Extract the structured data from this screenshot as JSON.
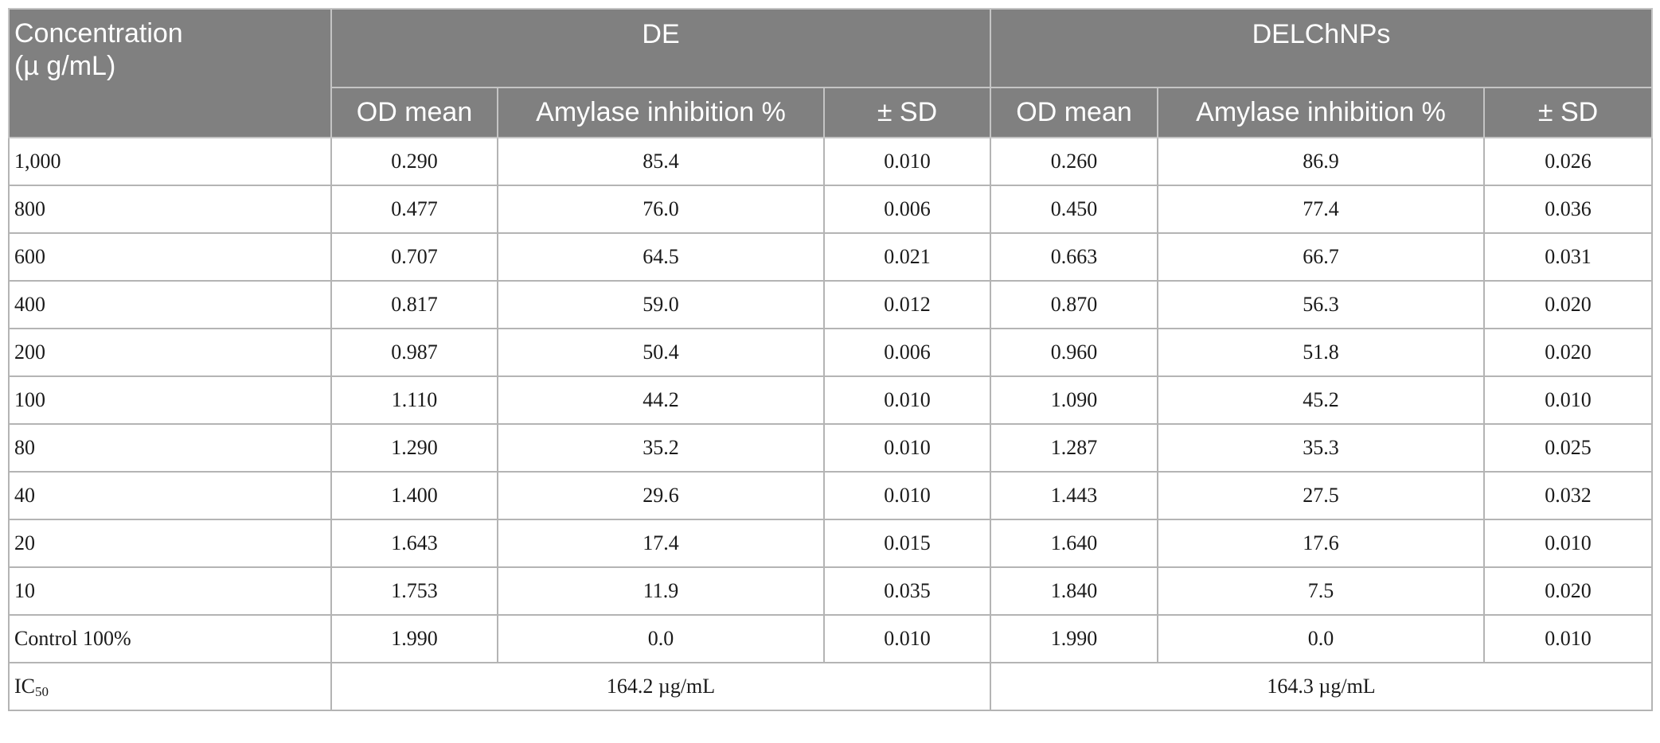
{
  "header": {
    "concentration_line1": "Concentration",
    "concentration_line2": "(µ g/mL)",
    "group_de": "DE",
    "group_delchnps": "DELChNPs",
    "sub_columns": [
      "OD mean",
      "Amylase inhibition %",
      "± SD",
      "OD mean",
      "Amylase inhibition %",
      "± SD"
    ]
  },
  "rows": [
    {
      "concentration": "1,000",
      "cells": [
        "0.290",
        "85.4",
        "0.010",
        "0.260",
        "86.9",
        "0.026"
      ]
    },
    {
      "concentration": "800",
      "cells": [
        "0.477",
        "76.0",
        "0.006",
        "0.450",
        "77.4",
        "0.036"
      ]
    },
    {
      "concentration": "600",
      "cells": [
        "0.707",
        "64.5",
        "0.021",
        "0.663",
        "66.7",
        "0.031"
      ]
    },
    {
      "concentration": "400",
      "cells": [
        "0.817",
        "59.0",
        "0.012",
        "0.870",
        "56.3",
        "0.020"
      ]
    },
    {
      "concentration": "200",
      "cells": [
        "0.987",
        "50.4",
        "0.006",
        "0.960",
        "51.8",
        "0.020"
      ]
    },
    {
      "concentration": "100",
      "cells": [
        "1.110",
        "44.2",
        "0.010",
        "1.090",
        "45.2",
        "0.010"
      ]
    },
    {
      "concentration": "80",
      "cells": [
        "1.290",
        "35.2",
        "0.010",
        "1.287",
        "35.3",
        "0.025"
      ]
    },
    {
      "concentration": "40",
      "cells": [
        "1.400",
        "29.6",
        "0.010",
        "1.443",
        "27.5",
        "0.032"
      ]
    },
    {
      "concentration": "20",
      "cells": [
        "1.643",
        "17.4",
        "0.015",
        "1.640",
        "17.6",
        "0.010"
      ]
    },
    {
      "concentration": "10",
      "cells": [
        "1.753",
        "11.9",
        "0.035",
        "1.840",
        "7.5",
        "0.020"
      ]
    },
    {
      "concentration": "Control 100%",
      "cells": [
        "1.990",
        "0.0",
        "0.010",
        "1.990",
        "0.0",
        "0.010"
      ]
    }
  ],
  "ic50": {
    "label_main": "IC",
    "label_sub": "50",
    "de_value": "164.2 µg/mL",
    "delchnps_value": "164.3 µg/mL"
  },
  "colors": {
    "header_background": "#808080",
    "header_text": "#ffffff",
    "grid_lines": "#b4b4b4"
  }
}
